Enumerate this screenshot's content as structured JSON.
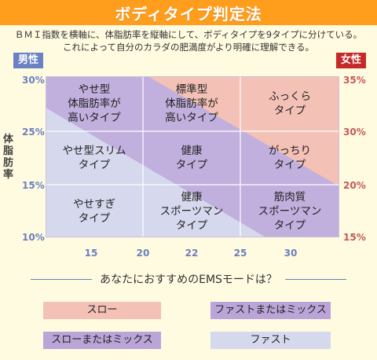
{
  "header": {
    "title": "ボディタイプ判定法"
  },
  "description": {
    "line1": "ＢＭＩ指数を横軸に、体脂肪率を縦軸にして、ボディタイプを9タイプに分けている。",
    "line2": "これによって自分のカラダの肥満度がより明確に理解できる。"
  },
  "tags": {
    "male": "男性",
    "female": "女性"
  },
  "axes": {
    "y_title": "体脂肪率",
    "y_left": [
      "30%",
      "25%",
      "15%",
      "10%"
    ],
    "y_right": [
      "35%",
      "30%",
      "20%",
      "15%"
    ],
    "x": [
      "15",
      "20",
      "22",
      "25",
      "30"
    ]
  },
  "colors": {
    "slow": "#f4c1b6",
    "fast_or_mix": "#bba5d8",
    "slow_or_mix": "#bba5d8",
    "fast": "#d6d8ee",
    "grid_line": "#ffffff"
  },
  "grid": {
    "rows": [
      [
        "やせ型\n体脂肪率が\n高いタイプ",
        "標準型\n体脂肪率が\n高いタイプ",
        "ふっくら\nタイプ"
      ],
      [
        "やせ型スリム\nタイプ",
        "健康\nタイプ",
        "がっちり\nタイプ"
      ],
      [
        "やせすぎ\nタイプ",
        "健康\nスポーツマン\nタイプ",
        "筋肉質\nスポーツマン\nタイプ"
      ]
    ]
  },
  "ems": {
    "question": "あなたにおすすめのEMSモードは？",
    "legend": {
      "slow": "スロー",
      "fast_or_mix": "ファストまたはミックス",
      "slow_or_mix": "スローまたはミックス",
      "fast": "ファスト"
    }
  }
}
